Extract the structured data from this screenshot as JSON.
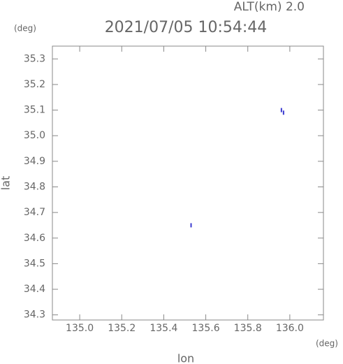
{
  "chart_data": {
    "type": "scatter",
    "title": "2021/07/05 10:54:44",
    "annotation": "ALT(km) 2.0",
    "y_unit": "(deg)",
    "x_unit": "(deg)",
    "xlabel": "lon",
    "ylabel": "lat",
    "x": [
      135.96,
      135.97,
      135.53
    ],
    "values": [
      35.1,
      35.09,
      34.65
    ],
    "color": "#3a3ad0",
    "xlim": [
      134.87,
      136.16
    ],
    "xticks": [
      {
        "value": 135,
        "label": "135.0"
      },
      135.2,
      135.4,
      135.6,
      135.8,
      {
        "value": 136,
        "label": "136.0"
      }
    ],
    "ylim": [
      34.28,
      35.35
    ],
    "yticks": [
      34.3,
      34.4,
      34.5,
      34.6,
      34.7,
      34.8,
      34.9,
      {
        "value": 35,
        "label": "35.0"
      },
      35.1,
      35.2,
      35.3
    ],
    "grid": false
  }
}
